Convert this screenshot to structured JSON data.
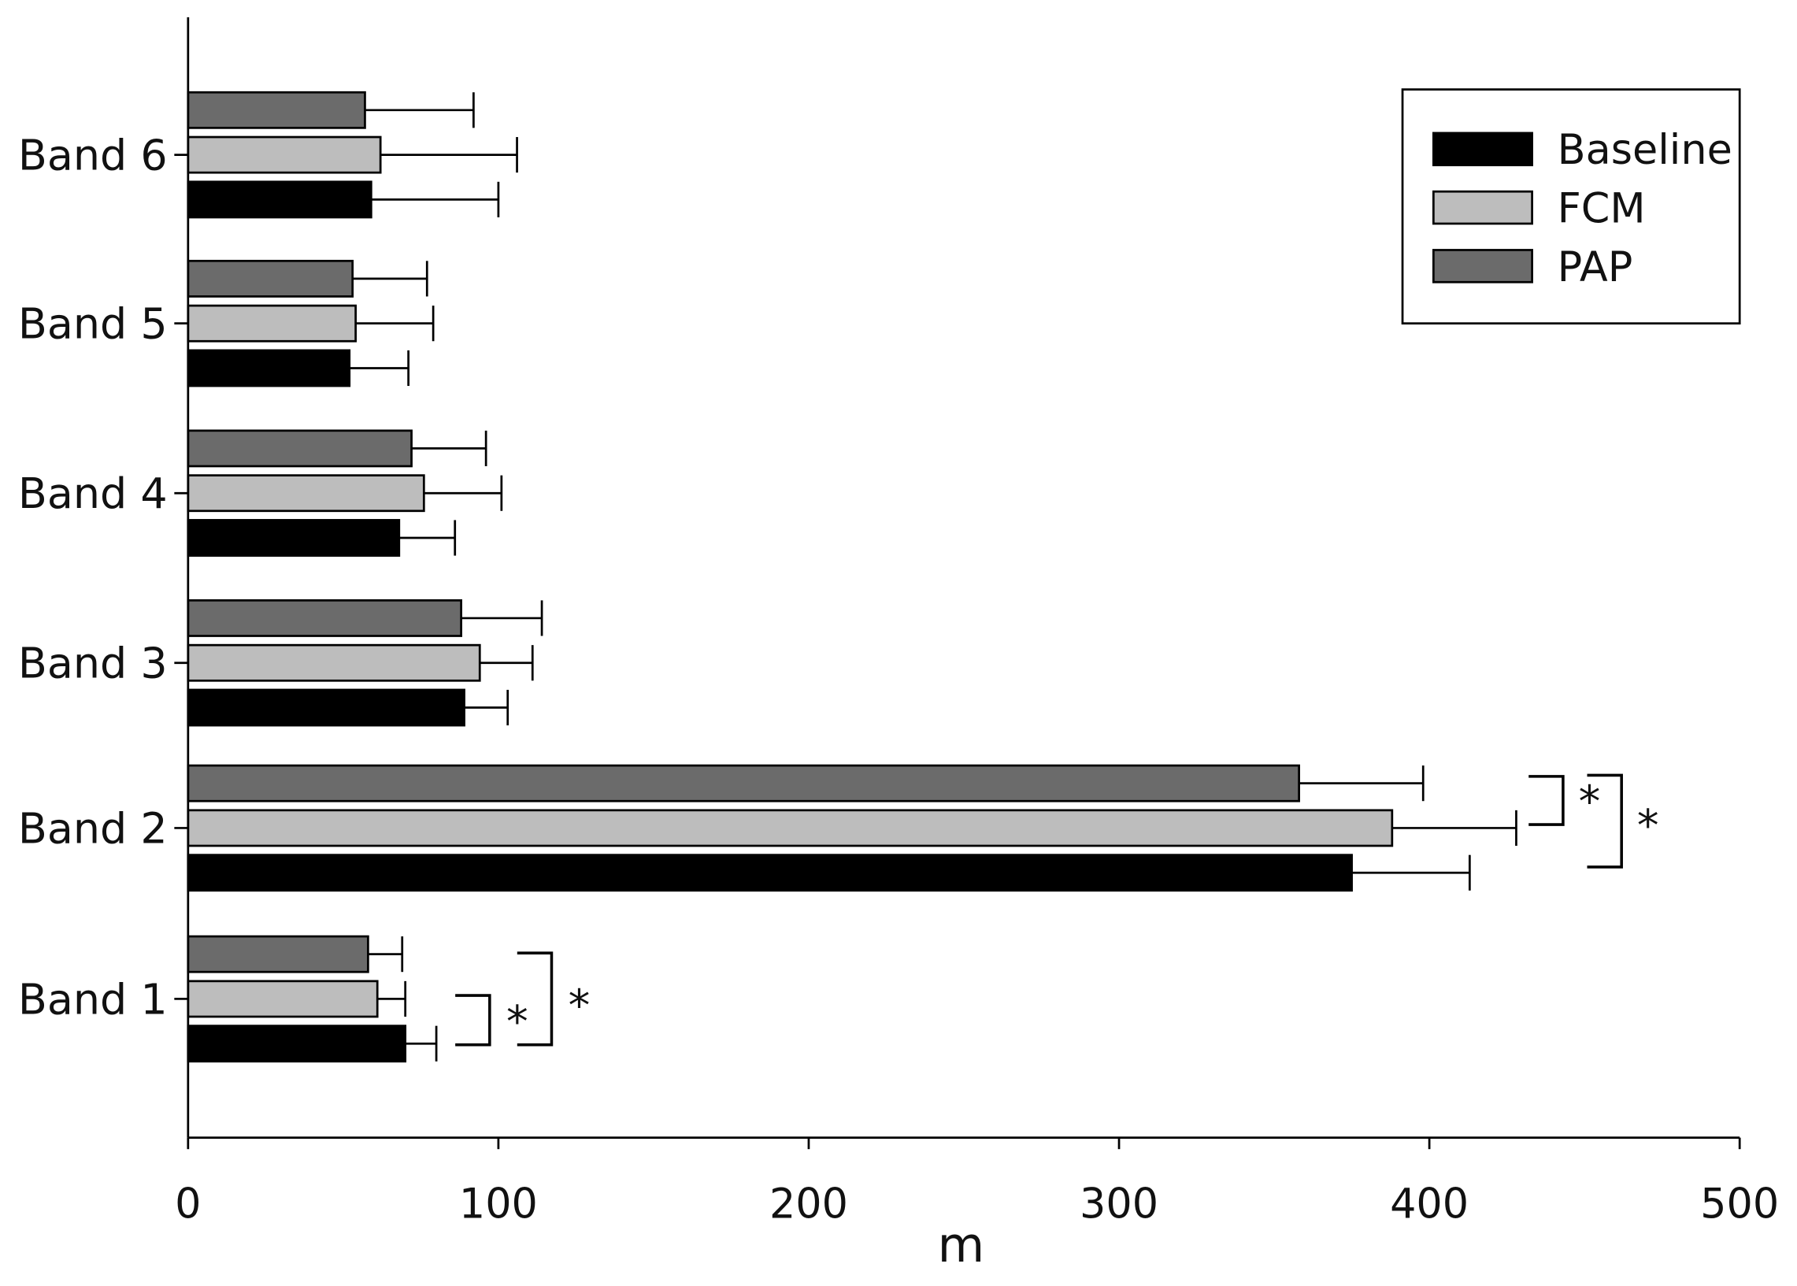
{
  "chart_data": {
    "type": "bar",
    "orientation": "horizontal",
    "title": "",
    "xlabel": "m",
    "ylabel": "",
    "xlim": [
      0,
      500
    ],
    "xticks": [
      0,
      100,
      200,
      300,
      400,
      500
    ],
    "grid": false,
    "legend_position": "top-right",
    "categories": [
      "Band 1",
      "Band 2",
      "Band 3",
      "Band 4",
      "Band 5",
      "Band 6"
    ],
    "series": [
      {
        "name": "Baseline",
        "color": "#000000",
        "values": [
          70,
          375,
          89,
          68,
          52,
          59
        ],
        "errors": [
          10,
          38,
          14,
          18,
          19,
          41
        ]
      },
      {
        "name": "FCM",
        "color": "#bdbdbd",
        "values": [
          61,
          388,
          94,
          76,
          54,
          62
        ],
        "errors": [
          9,
          40,
          17,
          25,
          25,
          44
        ]
      },
      {
        "name": "PAP",
        "color": "#6b6b6b",
        "values": [
          58,
          358,
          88,
          72,
          53,
          57
        ],
        "errors": [
          11,
          40,
          26,
          24,
          24,
          35
        ]
      }
    ],
    "annotations": [
      {
        "category": "Band 1",
        "from": "Baseline",
        "to": "FCM",
        "label": "*"
      },
      {
        "category": "Band 1",
        "from": "Baseline",
        "to": "PAP",
        "label": "*"
      },
      {
        "category": "Band 2",
        "from": "FCM",
        "to": "PAP",
        "label": "*"
      },
      {
        "category": "Band 2",
        "from": "Baseline",
        "to": "PAP",
        "label": "*"
      }
    ]
  }
}
